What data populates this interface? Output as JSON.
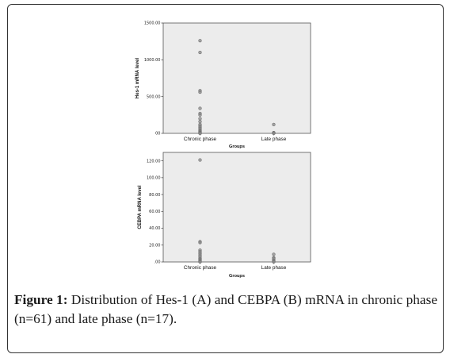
{
  "figure": {
    "label": "Figure 1:",
    "text": " Distribution of Hes-1 (A) and CEBPA (B) mRNA in chronic phase (n=61) and late phase (n=17)."
  },
  "chart_data": [
    {
      "type": "scatter",
      "ylabel": "Hes-1 mRNA level",
      "xlabel": "Groups",
      "categories": [
        "Chronic phase",
        "Late phase"
      ],
      "yticks": [
        "00",
        "500.00",
        "1000.00",
        "1500.00"
      ],
      "ylim": [
        0,
        1500
      ],
      "grid": false,
      "series": [
        {
          "category": "Chronic phase",
          "values": [
            1260,
            1100,
            580,
            560,
            340,
            270,
            250,
            200,
            160,
            120,
            100,
            80,
            60,
            40,
            30,
            20,
            10,
            5,
            0
          ]
        },
        {
          "category": "Late phase",
          "values": [
            120,
            10,
            5,
            0
          ]
        }
      ]
    },
    {
      "type": "scatter",
      "ylabel": "CEBPA mRNA level",
      "xlabel": "Groups",
      "categories": [
        "Chronic phase",
        "Late phase"
      ],
      "yticks": [
        ".00",
        "20.00",
        "40.00",
        "60.00",
        "80.00",
        "100.00",
        "120.00"
      ],
      "ylim": [
        0,
        130
      ],
      "grid": false,
      "series": [
        {
          "category": "Chronic phase",
          "values": [
            121,
            24,
            23,
            14,
            12,
            10,
            8,
            6,
            4,
            3,
            2,
            1,
            0
          ]
        },
        {
          "category": "Late phase",
          "values": [
            9,
            5,
            4,
            2,
            1,
            0
          ]
        }
      ]
    }
  ]
}
